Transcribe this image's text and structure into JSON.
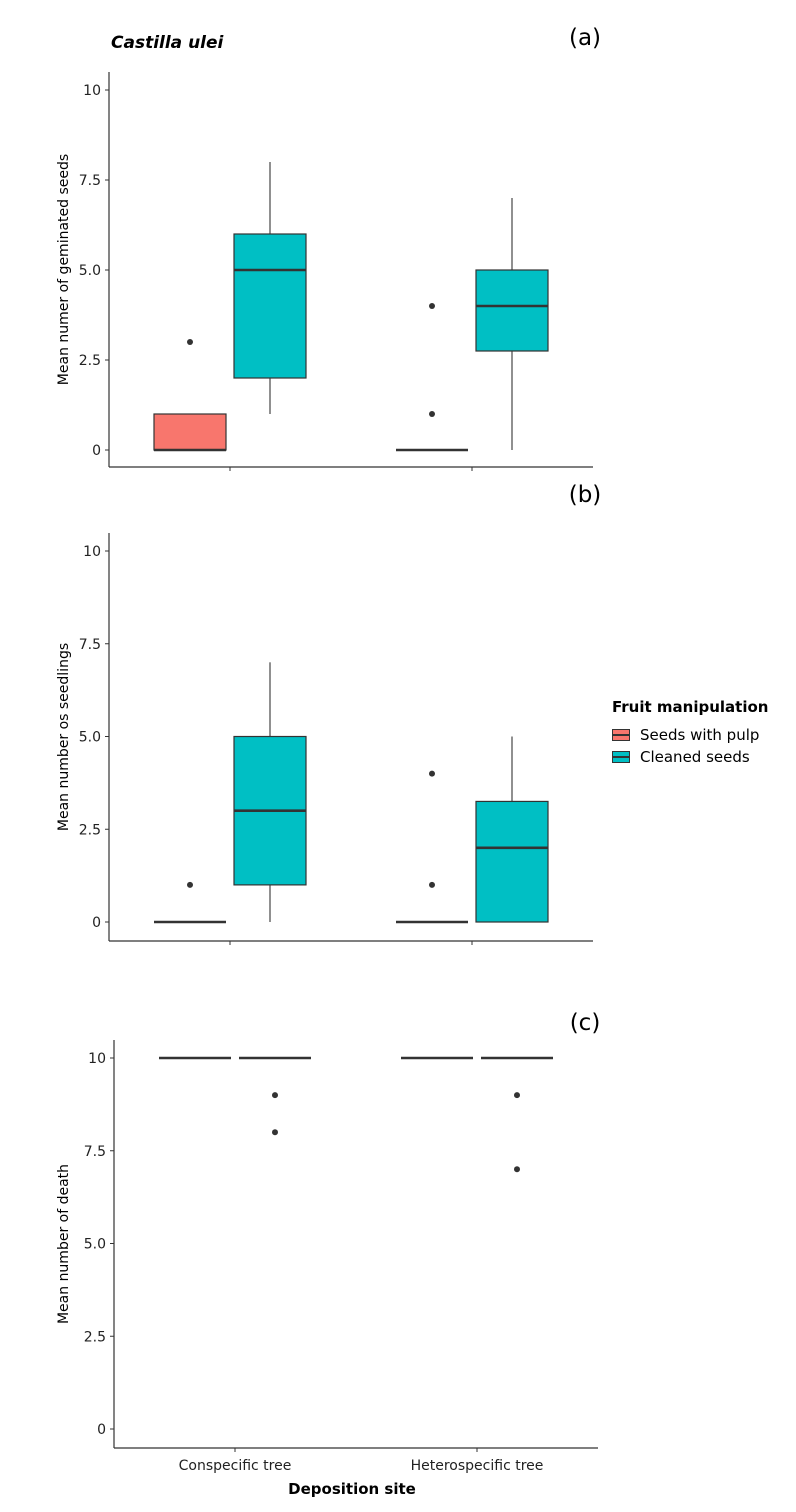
{
  "figure": {
    "species_title": "Castilla ulei",
    "xlabel": "Deposition site",
    "legend": {
      "title": "Fruit manipulation",
      "items": [
        {
          "label": "Seeds with pulp",
          "color": "#F8766D"
        },
        {
          "label": "Cleaned seeds",
          "color": "#00BFC4"
        }
      ]
    }
  },
  "chart_data": [
    {
      "type": "box",
      "panel_label": "(a)",
      "title": "Castilla ulei",
      "xlabel": "",
      "ylabel": "Mean numer of geminated seeds",
      "categories": [
        "Conspecific tree",
        "Heterospecific tree"
      ],
      "ylim": [
        0,
        10
      ],
      "yticks": [
        0,
        2.5,
        5.0,
        7.5,
        10
      ],
      "ytick_labels": [
        "0",
        "2.5",
        "5.0",
        "7.5",
        "10"
      ],
      "series": [
        {
          "name": "Seeds with pulp",
          "boxes": [
            {
              "category": "Conspecific tree",
              "min": 0,
              "q1": 0,
              "median": 0,
              "q3": 1,
              "max": 1,
              "outliers": [
                3
              ]
            },
            {
              "category": "Heterospecific tree",
              "min": 0,
              "q1": 0,
              "median": 0,
              "q3": 0,
              "max": 0,
              "outliers": [
                1,
                4
              ]
            }
          ]
        },
        {
          "name": "Cleaned seeds",
          "boxes": [
            {
              "category": "Conspecific tree",
              "min": 1,
              "q1": 2,
              "median": 5,
              "q3": 6,
              "max": 8,
              "outliers": []
            },
            {
              "category": "Heterospecific tree",
              "min": 0,
              "q1": 2.75,
              "median": 4,
              "q3": 5,
              "max": 7,
              "outliers": []
            }
          ]
        }
      ]
    },
    {
      "type": "box",
      "panel_label": "(b)",
      "xlabel": "",
      "ylabel": "Mean number os seedlings",
      "categories": [
        "Conspecific tree",
        "Heterospecific tree"
      ],
      "ylim": [
        0,
        10
      ],
      "yticks": [
        0,
        2.5,
        5.0,
        7.5,
        10
      ],
      "ytick_labels": [
        "0",
        "2.5",
        "5.0",
        "7.5",
        "10"
      ],
      "series": [
        {
          "name": "Seeds with pulp",
          "boxes": [
            {
              "category": "Conspecific tree",
              "min": 0,
              "q1": 0,
              "median": 0,
              "q3": 0,
              "max": 0,
              "outliers": [
                1
              ]
            },
            {
              "category": "Heterospecific tree",
              "min": 0,
              "q1": 0,
              "median": 0,
              "q3": 0,
              "max": 0,
              "outliers": [
                1,
                4
              ]
            }
          ]
        },
        {
          "name": "Cleaned seeds",
          "boxes": [
            {
              "category": "Conspecific tree",
              "min": 0,
              "q1": 1,
              "median": 3,
              "q3": 5,
              "max": 7,
              "outliers": []
            },
            {
              "category": "Heterospecific tree",
              "min": 0,
              "q1": 0,
              "median": 2,
              "q3": 3.25,
              "max": 5,
              "outliers": []
            }
          ]
        }
      ]
    },
    {
      "type": "box",
      "panel_label": "(c)",
      "xlabel": "Deposition site",
      "ylabel": "Mean number of death",
      "categories": [
        "Conspecific tree",
        "Heterospecific tree"
      ],
      "ylim": [
        0,
        10
      ],
      "yticks": [
        0,
        2.5,
        5.0,
        7.5,
        10
      ],
      "ytick_labels": [
        "0",
        "2.5",
        "5.0",
        "7.5",
        "10"
      ],
      "series": [
        {
          "name": "Seeds with pulp",
          "boxes": [
            {
              "category": "Conspecific tree",
              "min": 10,
              "q1": 10,
              "median": 10,
              "q3": 10,
              "max": 10,
              "outliers": []
            },
            {
              "category": "Heterospecific tree",
              "min": 10,
              "q1": 10,
              "median": 10,
              "q3": 10,
              "max": 10,
              "outliers": []
            }
          ]
        },
        {
          "name": "Cleaned seeds",
          "boxes": [
            {
              "category": "Conspecific tree",
              "min": 10,
              "q1": 10,
              "median": 10,
              "q3": 10,
              "max": 10,
              "outliers": [
                8,
                9
              ]
            },
            {
              "category": "Heterospecific tree",
              "min": 10,
              "q1": 10,
              "median": 10,
              "q3": 10,
              "max": 10,
              "outliers": [
                7,
                9
              ]
            }
          ]
        }
      ]
    }
  ]
}
